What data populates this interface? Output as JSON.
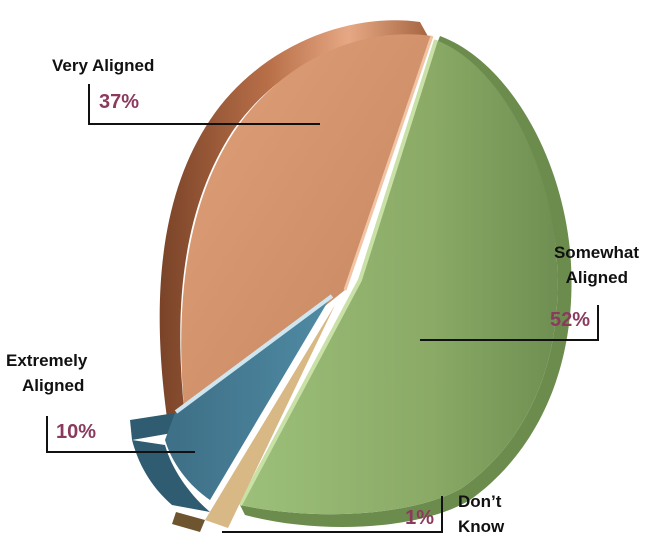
{
  "chart_data": {
    "type": "pie",
    "title": "",
    "style": "3d-exploded",
    "slices": [
      {
        "label": "Somewhat Aligned",
        "label_lines": [
          "Somewhat",
          "Aligned"
        ],
        "value": 52,
        "value_label": "52%",
        "color": "#8fae6a"
      },
      {
        "label": "Very Aligned",
        "label_lines": [
          "Very Aligned"
        ],
        "value": 37,
        "value_label": "37%",
        "color": "#c98a63"
      },
      {
        "label": "Extremely Aligned",
        "label_lines": [
          "Extremely",
          "Aligned"
        ],
        "value": 10,
        "value_label": "10%",
        "color": "#4a7f97"
      },
      {
        "label": "Don’t Know",
        "label_lines": [
          "Don’t",
          "Know"
        ],
        "value": 1,
        "value_label": "1%",
        "color": "#d4b07a"
      }
    ],
    "label_color": "#111111",
    "value_color": "#8b3a5e"
  }
}
